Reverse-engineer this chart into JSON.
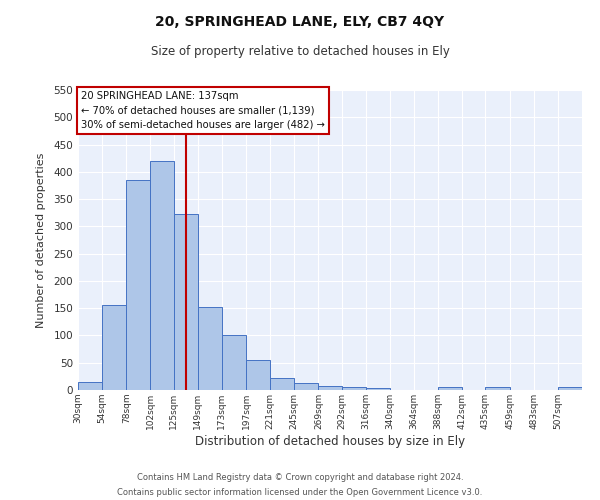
{
  "title1": "20, SPRINGHEAD LANE, ELY, CB7 4QY",
  "title2": "Size of property relative to detached houses in Ely",
  "xlabel": "Distribution of detached houses by size in Ely",
  "ylabel": "Number of detached properties",
  "footer1": "Contains HM Land Registry data © Crown copyright and database right 2024.",
  "footer2": "Contains public sector information licensed under the Open Government Licence v3.0.",
  "bin_labels": [
    "30sqm",
    "54sqm",
    "78sqm",
    "102sqm",
    "125sqm",
    "149sqm",
    "173sqm",
    "197sqm",
    "221sqm",
    "245sqm",
    "269sqm",
    "292sqm",
    "316sqm",
    "340sqm",
    "364sqm",
    "388sqm",
    "412sqm",
    "435sqm",
    "459sqm",
    "483sqm",
    "507sqm"
  ],
  "bar_heights": [
    15,
    155,
    385,
    420,
    323,
    153,
    100,
    55,
    22,
    13,
    8,
    5,
    4,
    0,
    0,
    5,
    0,
    5,
    0,
    0,
    5
  ],
  "bar_color": "#aec6e8",
  "bar_edge_color": "#4472c4",
  "bg_color": "#eaf0fb",
  "grid_color": "#ffffff",
  "vline_color": "#c00000",
  "ylim": [
    0,
    550
  ],
  "yticks": [
    0,
    50,
    100,
    150,
    200,
    250,
    300,
    350,
    400,
    450,
    500,
    550
  ],
  "annotation_title": "20 SPRINGHEAD LANE: 137sqm",
  "annotation_line1": "← 70% of detached houses are smaller (1,139)",
  "annotation_line2": "30% of semi-detached houses are larger (482) →",
  "annotation_box_color": "#c00000",
  "property_value": 137,
  "bin_edges": [
    30,
    54,
    78,
    102,
    125,
    149,
    173,
    197,
    221,
    245,
    269,
    292,
    316,
    340,
    364,
    388,
    412,
    435,
    459,
    483,
    507,
    531
  ]
}
